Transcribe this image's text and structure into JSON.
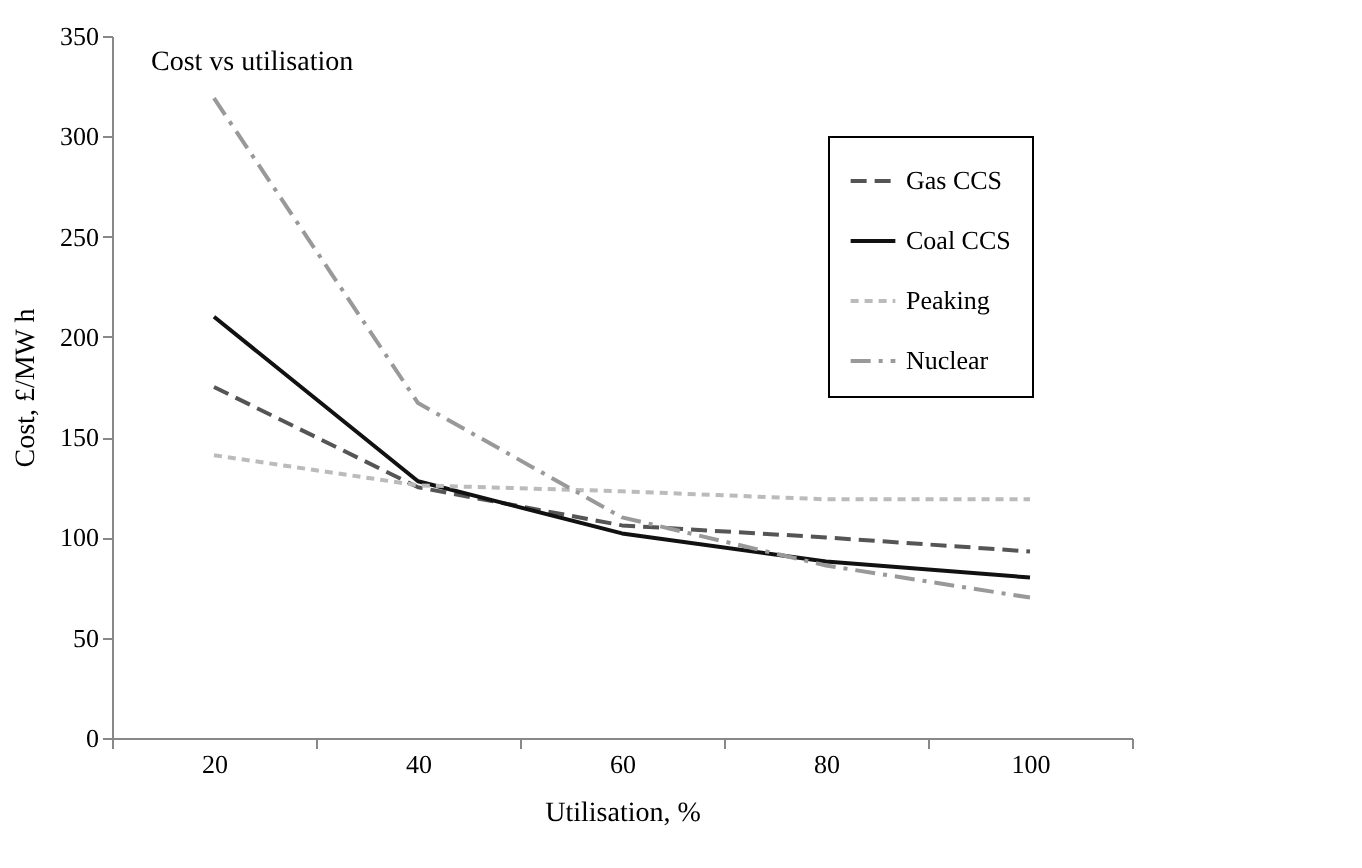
{
  "chart_data": {
    "type": "line",
    "title": "Cost vs utilisation",
    "xlabel": "Utilisation, %",
    "ylabel": "Cost, £/MW h",
    "categories": [
      "20",
      "40",
      "60",
      "80",
      "100"
    ],
    "series": [
      {
        "name": "Gas CCS",
        "color": "#555555",
        "line_style": "dashed",
        "values": [
          175,
          125,
          106,
          100,
          93
        ]
      },
      {
        "name": "Coal CCS",
        "color": "#111111",
        "line_style": "solid",
        "values": [
          210,
          128,
          102,
          88,
          80
        ]
      },
      {
        "name": "Peaking",
        "color": "#bbbbbb",
        "line_style": "dotted",
        "values": [
          141,
          126,
          123,
          119,
          119
        ]
      },
      {
        "name": "Nuclear",
        "color": "#999999",
        "line_style": "dashdot",
        "values": [
          319,
          167,
          110,
          86,
          70
        ]
      }
    ],
    "ylim": [
      0,
      350
    ],
    "yticks": [
      0,
      50,
      100,
      150,
      200,
      250,
      300,
      350
    ],
    "grid": false,
    "legend": "top right"
  }
}
